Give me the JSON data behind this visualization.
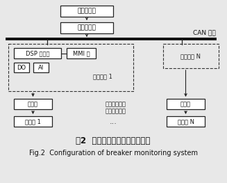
{
  "title_zh": "图2  断路器在线监测系统的结构",
  "title_en": "Fig.2  Configuration of breaker monitoring system",
  "bg_color": "#e8e8e8",
  "can_label": "CAN 总线",
  "boxes": {
    "shangweiji": "上位机系统",
    "tongxin": "通信前置机",
    "dsp": "DSP 主控板",
    "mmi": "MMI 板",
    "do": "DO",
    "ai": "AI",
    "jiankong1": "监测装置 1",
    "jiankongN": "监测装置 N",
    "chuanganqi1": "传感器",
    "chuanganqiN": "传感器",
    "duanluqi1": "断路器 1",
    "duanluqiN": "断路器 N"
  },
  "annotation_line1": "电流测量、行",
  "annotation_line2": "程、振动测量",
  "ellipsis": "...",
  "layout": {
    "fig_w": 3.27,
    "fig_h": 2.63,
    "dpi": 100
  }
}
